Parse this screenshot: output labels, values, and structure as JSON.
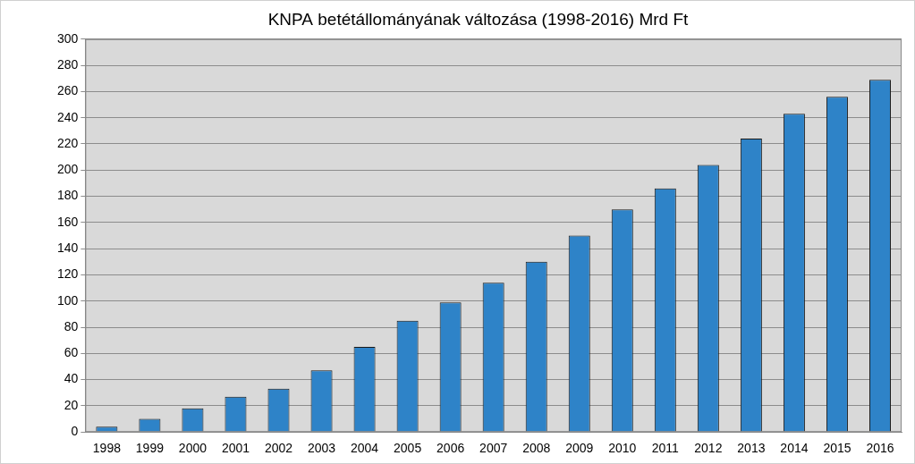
{
  "chart_data": {
    "type": "bar",
    "title": "KNPA betétállományának változása (1998-2016) Mrd Ft",
    "categories": [
      "1998",
      "1999",
      "2000",
      "2001",
      "2002",
      "2003",
      "2004",
      "2005",
      "2006",
      "2007",
      "2008",
      "2009",
      "2010",
      "2011",
      "2012",
      "2013",
      "2014",
      "2015",
      "2016"
    ],
    "values": [
      4,
      10,
      18,
      27,
      33,
      47,
      65,
      85,
      99,
      114,
      130,
      150,
      170,
      186,
      204,
      224,
      243,
      256,
      269
    ],
    "color": "#2e83c8",
    "ylim": [
      0,
      300
    ],
    "yticks": [
      0,
      20,
      40,
      60,
      80,
      100,
      120,
      140,
      160,
      180,
      200,
      220,
      240,
      260,
      280,
      300
    ],
    "grid": true
  }
}
